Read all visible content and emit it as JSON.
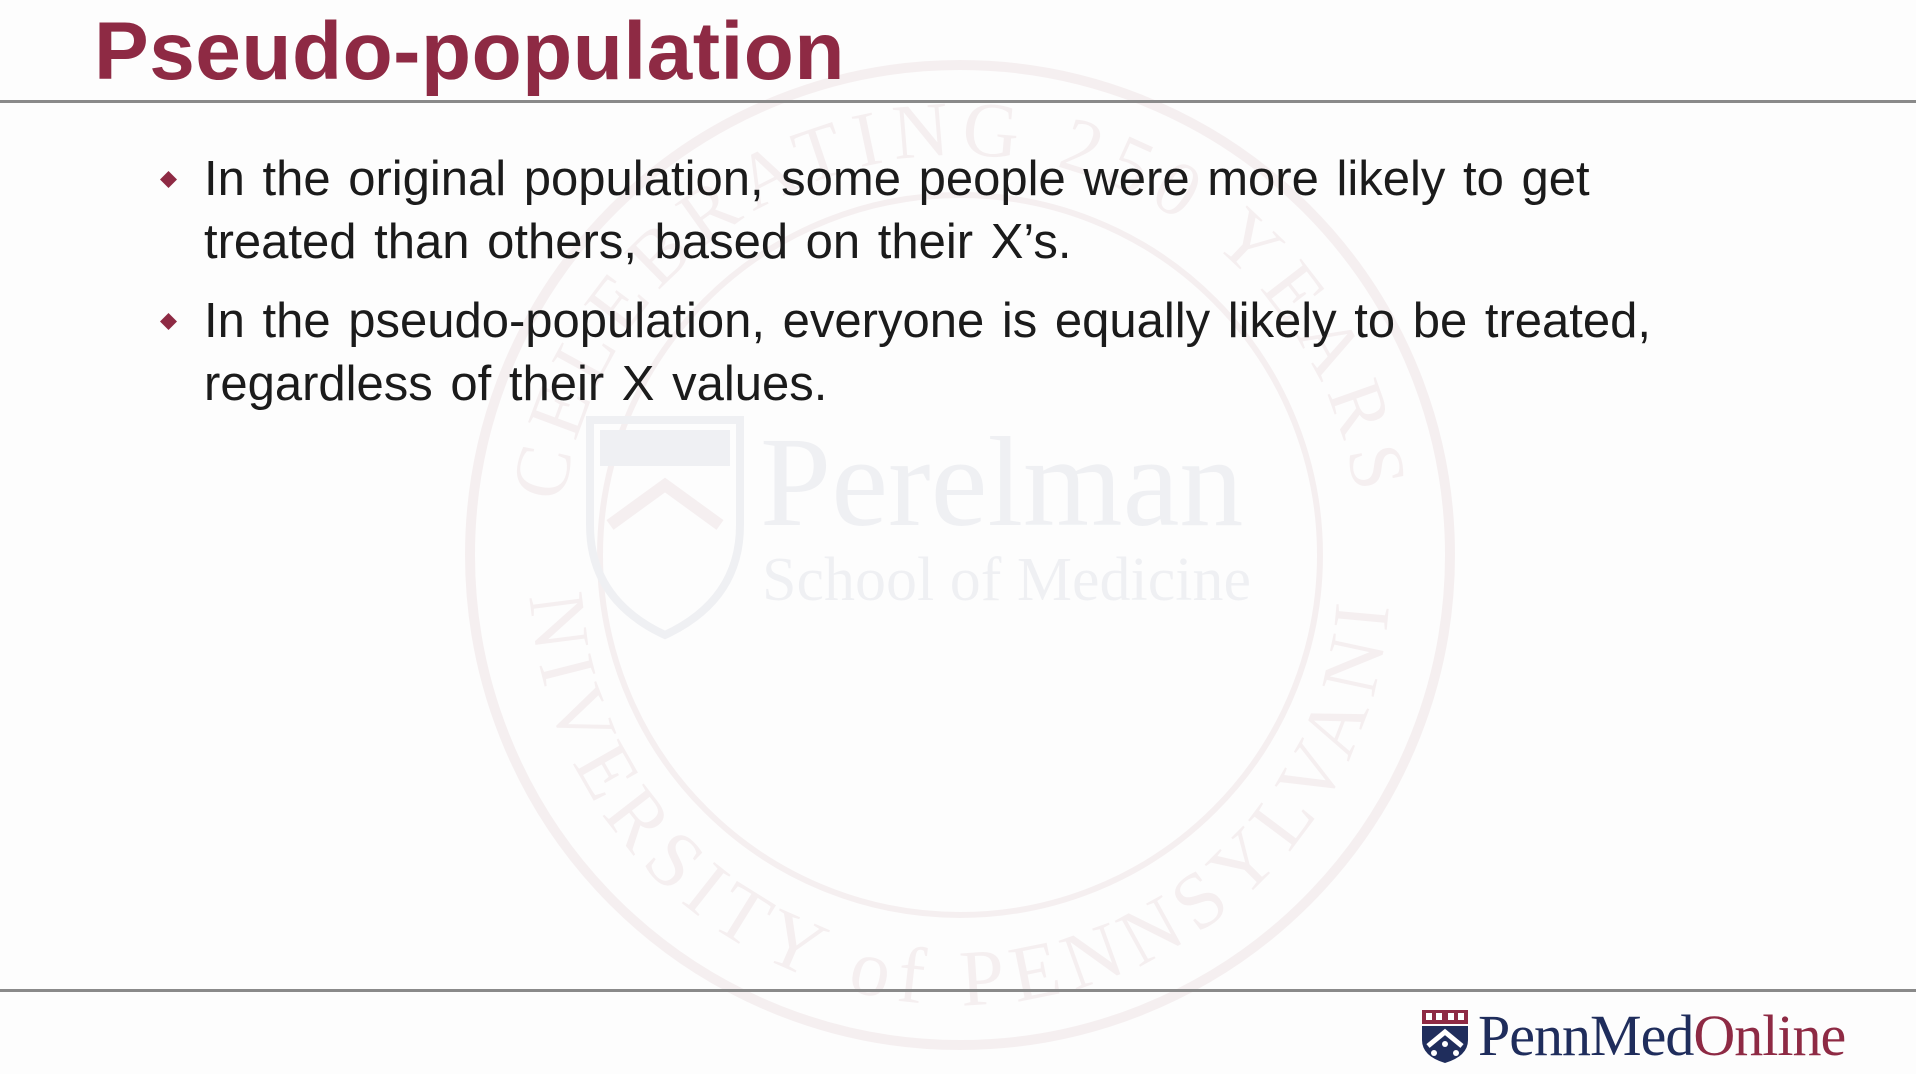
{
  "slide": {
    "title": "Pseudo-population",
    "bullets": [
      {
        "text": "In the original population, some people were more likely to get treated than others, based on their X’s."
      },
      {
        "text": "In the pseudo-population, everyone is equally likely to be treated, regardless of their X values."
      }
    ]
  },
  "watermark": {
    "arc_top": "CELEBRATING 250 YEARS",
    "arc_bottom": "UNIVERSITY of PENNSYLVANIA",
    "name": "Perelman",
    "subname": "School of Medicine"
  },
  "logo": {
    "part1": "Penn",
    "part2": "Med",
    "part3": "Online"
  },
  "colors": {
    "title": "#8e2a44",
    "bullet_marker": "#8e2a44",
    "rule": "#8a8a8a",
    "logo_blue": "#1f2d5c",
    "logo_red": "#8e2a44"
  }
}
